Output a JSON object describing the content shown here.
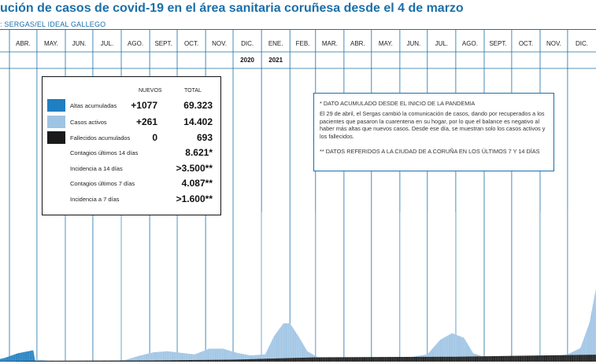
{
  "header": {
    "title": "ución de casos de covid-19 en el área sanitaria coruñesa desde el 4 de marzo",
    "source": ": SERGAS/EL IDEAL GALLEGO"
  },
  "legend": {
    "col_nuevos": "NUEVOS",
    "col_total": "TOTAL",
    "rows": [
      {
        "label": "Altas acumuladas",
        "nuevos": "+1077",
        "total": "69.323"
      },
      {
        "label": "Casos activos",
        "nuevos": "+261",
        "total": "14.402"
      },
      {
        "label": "Fallecidos acumulados",
        "nuevos": "0",
        "total": "693"
      },
      {
        "label": "Contagios últimos 14 días",
        "nuevos": "",
        "total": "8.621*"
      },
      {
        "label": "Incidencia a 14 días",
        "nuevos": "",
        "total": ">3.500**"
      },
      {
        "label": "Contagios últimos 7 días",
        "nuevos": "",
        "total": "4.087**"
      },
      {
        "label": "Incidencia a 7 días",
        "nuevos": "",
        "total": ">1.600**"
      }
    ]
  },
  "notes": {
    "line1": "* DATO ACUMULADO DESDE EL INICIO DE LA PANDEMIA",
    "line2": "El 29 de abril, el Sergas cambió la comunicación de casos, dando por recuperados a los pacientes que pasaron la cuarentena en su hogar, por lo que el balance es negativo al haber más altas que nuevos casos. Desde ese día, se muestran solo los casos activos y los fallecidos.",
    "line3": "** DATOS REFERIDOS A LA CIUDAD DE A CORUÑA EN LOS ÚLTIMOS 7 Y 14 DÍAS"
  },
  "colors": {
    "altas": "#1f7fc1",
    "activos": "#9ec4e4",
    "fallecidos": "#1a1a1a",
    "accent": "#1b6fa8",
    "grid": "#1b6fa8"
  },
  "chart_data": {
    "type": "area",
    "x_tick_labels": [
      "ABR.",
      "MAY.",
      "JUN.",
      "JUL.",
      "AGO.",
      "SEPT.",
      "OCT.",
      "NOV.",
      "DIC.",
      "ENE.",
      "FEB.",
      "MAR.",
      "ABR.",
      "MAY.",
      "JUN.",
      "JUL.",
      "AGO.",
      "SEPT.",
      "OCT.",
      "NOV.",
      "DIC."
    ],
    "year_labels": [
      "2020",
      "2021"
    ],
    "x_start": "2020-03-04",
    "month_starts": [
      "2020-04-01",
      "2020-05-01",
      "2020-06-01",
      "2020-07-01",
      "2020-08-01",
      "2020-09-01",
      "2020-10-01",
      "2020-11-01",
      "2020-12-01",
      "2021-01-01",
      "2021-02-01",
      "2021-03-01",
      "2021-04-01",
      "2021-05-01",
      "2021-06-01",
      "2021-07-01",
      "2021-08-01",
      "2021-09-01",
      "2021-10-01",
      "2021-11-01",
      "2021-12-01",
      "2022-01-01"
    ],
    "ylim": [
      0,
      14402
    ],
    "series": [
      {
        "name": "Casos activos",
        "points": [
          [
            "2020-03-04",
            0
          ],
          [
            "2020-03-15",
            50
          ],
          [
            "2020-03-25",
            350
          ],
          [
            "2020-04-05",
            500
          ],
          [
            "2020-04-15",
            700
          ],
          [
            "2020-04-27",
            900
          ],
          [
            "2020-04-29",
            200
          ],
          [
            "2020-05-15",
            90
          ],
          [
            "2020-06-15",
            40
          ],
          [
            "2020-07-15",
            40
          ],
          [
            "2020-08-05",
            150
          ],
          [
            "2020-08-20",
            550
          ],
          [
            "2020-09-05",
            900
          ],
          [
            "2020-09-20",
            1000
          ],
          [
            "2020-10-05",
            850
          ],
          [
            "2020-10-20",
            700
          ],
          [
            "2020-11-05",
            1250
          ],
          [
            "2020-11-20",
            1250
          ],
          [
            "2020-12-05",
            850
          ],
          [
            "2020-12-20",
            600
          ],
          [
            "2021-01-05",
            700
          ],
          [
            "2021-01-15",
            2500
          ],
          [
            "2021-01-25",
            3700
          ],
          [
            "2021-02-01",
            3700
          ],
          [
            "2021-02-10",
            2500
          ],
          [
            "2021-02-20",
            1000
          ],
          [
            "2021-03-05",
            350
          ],
          [
            "2021-04-01",
            250
          ],
          [
            "2021-05-01",
            250
          ],
          [
            "2021-06-01",
            250
          ],
          [
            "2021-07-01",
            700
          ],
          [
            "2021-07-15",
            2100
          ],
          [
            "2021-07-28",
            2750
          ],
          [
            "2021-08-10",
            2300
          ],
          [
            "2021-08-20",
            800
          ],
          [
            "2021-09-05",
            350
          ],
          [
            "2021-10-01",
            150
          ],
          [
            "2021-11-01",
            200
          ],
          [
            "2021-12-01",
            700
          ],
          [
            "2021-12-15",
            1300
          ],
          [
            "2021-12-25",
            3800
          ],
          [
            "2022-01-05",
            9000
          ],
          [
            "2022-01-11",
            14402
          ]
        ]
      },
      {
        "name": "Altas acumuladas",
        "points": [
          [
            "2020-03-04",
            0
          ],
          [
            "2020-03-25",
            300
          ],
          [
            "2020-04-10",
            800
          ],
          [
            "2020-04-27",
            1100
          ],
          [
            "2020-04-29",
            0
          ]
        ]
      },
      {
        "name": "Fallecidos acumulados",
        "points": [
          [
            "2020-03-04",
            0
          ],
          [
            "2020-05-01",
            80
          ],
          [
            "2020-09-01",
            110
          ],
          [
            "2020-12-01",
            190
          ],
          [
            "2021-03-01",
            420
          ],
          [
            "2021-08-01",
            480
          ],
          [
            "2022-01-11",
            693
          ]
        ]
      }
    ]
  }
}
